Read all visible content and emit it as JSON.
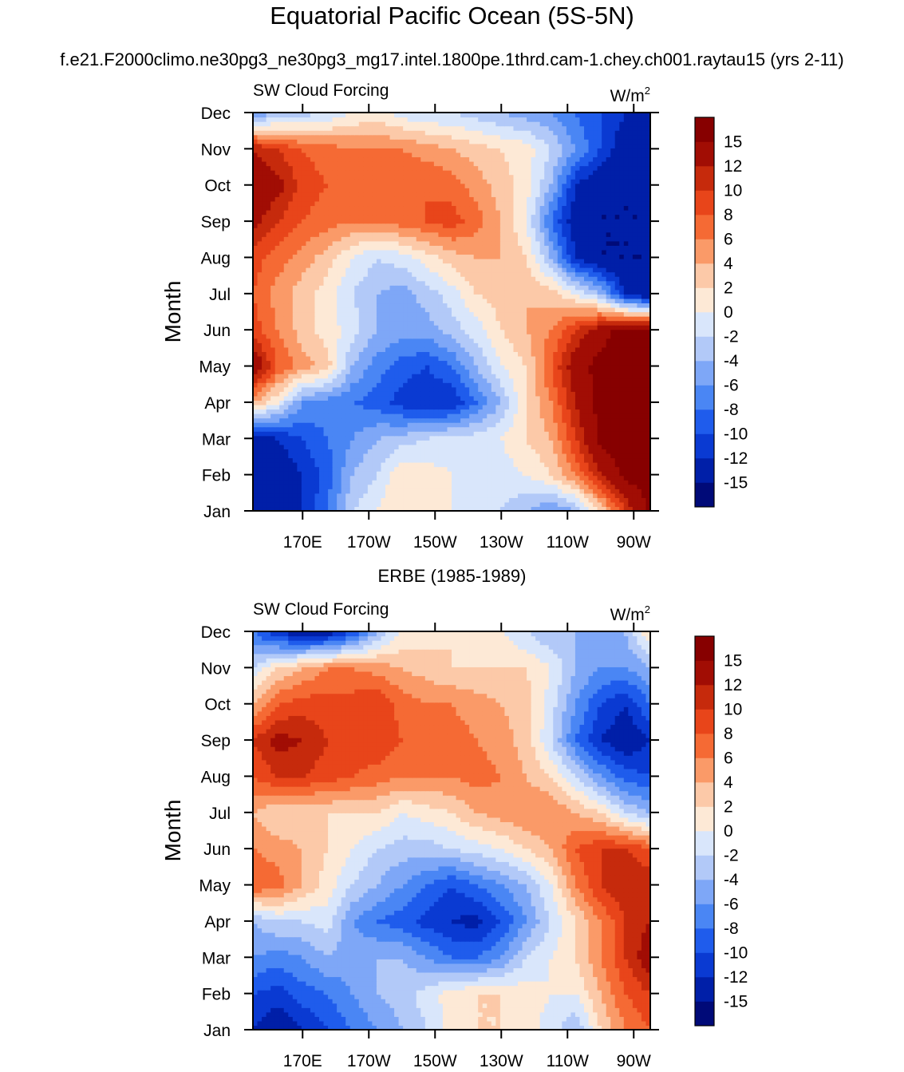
{
  "title": "Equatorial Pacific Ocean (5S-5N)",
  "subtitle": "f.e21.F2000climo.ne30pg3_ne30pg3_mg17.intel.1800pe.1thrd.cam-1.chey.ch001.raytau15 (yrs 2-11)",
  "colorbar": {
    "levels": [
      -15,
      -12,
      -10,
      -8,
      -6,
      -4,
      -2,
      0,
      2,
      4,
      6,
      8,
      10,
      12,
      15
    ],
    "label_texts": [
      "-15",
      "-12",
      "-10",
      "-8",
      "-6",
      "-4",
      "-2",
      "0",
      "2",
      "4",
      "6",
      "8",
      "10",
      "12",
      "15"
    ],
    "colors": [
      "#000a78",
      "#001fa8",
      "#0a3ad2",
      "#1f5cec",
      "#4a86f4",
      "#7ea7f7",
      "#b2c9f8",
      "#d9e6fb",
      "#fde9d6",
      "#fcc9a8",
      "#fa9a68",
      "#f56a34",
      "#e8451a",
      "#c62a0c",
      "#a10d04",
      "#870000"
    ]
  },
  "chart_data": [
    {
      "type": "heatmap",
      "title": "",
      "left_label": "SW Cloud Forcing",
      "units_base": "W/m",
      "units_exp": "2",
      "ylabel": "Month",
      "xlabel": "",
      "x_ticks": [
        "170E",
        "170W",
        "150W",
        "130W",
        "110W",
        "90W"
      ],
      "y_ticks": [
        "Jan",
        "Feb",
        "Mar",
        "Apr",
        "May",
        "Jun",
        "Jul",
        "Aug",
        "Sep",
        "Oct",
        "Nov",
        "Dec"
      ],
      "x": [
        155,
        162.5,
        170,
        177.5,
        185,
        192.5,
        200,
        207.5,
        215,
        222.5,
        230,
        237.5,
        245,
        252.5,
        260,
        267.5,
        275
      ],
      "y": [
        "Jan",
        "Feb",
        "Mar",
        "Apr",
        "May",
        "Jun",
        "Jul",
        "Aug",
        "Sep",
        "Oct",
        "Nov",
        "Dec"
      ],
      "z": [
        [
          -15,
          -14,
          -12,
          -8,
          -2,
          0,
          2,
          2,
          0,
          -2,
          -2,
          -4,
          -6,
          -4,
          2,
          10,
          16
        ],
        [
          -15,
          -14,
          -12,
          -9,
          -4,
          -2,
          2,
          1,
          0,
          -2,
          -1,
          0,
          2,
          6,
          12,
          16,
          16
        ],
        [
          -14,
          -12,
          -10,
          -8,
          -6,
          -4,
          -3,
          -2,
          -1,
          -1,
          0,
          2,
          4,
          10,
          16,
          16,
          16
        ],
        [
          4,
          0,
          -6,
          -7,
          -8,
          -9,
          -11,
          -12,
          -12,
          -8,
          -4,
          2,
          6,
          12,
          16,
          16,
          16
        ],
        [
          15,
          8,
          5,
          3,
          -4,
          -7,
          -9,
          -10,
          -8,
          -4,
          0,
          2,
          8,
          14,
          16,
          16,
          16
        ],
        [
          9,
          6,
          3,
          1,
          -1,
          -4,
          -5,
          -5,
          -3,
          -1,
          2,
          4,
          6,
          10,
          14,
          16,
          16
        ],
        [
          8,
          5,
          3,
          1,
          -2,
          -4,
          -5,
          -3,
          -1,
          2,
          3,
          4,
          3,
          0,
          -4,
          -12,
          -15
        ],
        [
          9,
          7,
          5,
          3,
          0,
          -2,
          -1,
          1,
          3,
          4,
          4,
          2,
          -4,
          -12,
          -15,
          -15,
          -15
        ],
        [
          13,
          10,
          8,
          7,
          6,
          6,
          7,
          8,
          9,
          7,
          4,
          0,
          -8,
          -14,
          -15,
          -15,
          -15
        ],
        [
          15,
          13,
          9,
          8,
          7,
          7,
          8,
          8,
          7,
          5,
          3,
          1,
          -4,
          -12,
          -15,
          -15,
          -15
        ],
        [
          12,
          10,
          8,
          7,
          6,
          6,
          6,
          5,
          4,
          3,
          2,
          1,
          -2,
          -6,
          -10,
          -14,
          -15
        ],
        [
          -6,
          -4,
          -3,
          -2,
          0,
          1,
          -1,
          -2,
          -2,
          -3,
          -4,
          -5,
          -6,
          -8,
          -10,
          -12,
          -15
        ]
      ]
    },
    {
      "type": "heatmap",
      "title": "ERBE (1985-1989)",
      "left_label": "SW Cloud Forcing",
      "units_base": "W/m",
      "units_exp": "2",
      "ylabel": "Month",
      "xlabel": "",
      "x_ticks": [
        "170E",
        "170W",
        "150W",
        "130W",
        "110W",
        "90W"
      ],
      "y_ticks": [
        "Jan",
        "Feb",
        "Mar",
        "Apr",
        "May",
        "Jun",
        "Jul",
        "Aug",
        "Sep",
        "Oct",
        "Nov",
        "Dec"
      ],
      "x": [
        155,
        162.5,
        170,
        177.5,
        185,
        192.5,
        200,
        207.5,
        215,
        222.5,
        230,
        237.5,
        245,
        252.5,
        260,
        267.5,
        275
      ],
      "y": [
        "Jan",
        "Feb",
        "Mar",
        "Apr",
        "May",
        "Jun",
        "Jul",
        "Aug",
        "Sep",
        "Oct",
        "Nov",
        "Dec"
      ],
      "z": [
        [
          -12,
          -14,
          -12,
          -10,
          -8,
          -6,
          -4,
          -2,
          1,
          2,
          2,
          1,
          -1,
          -4,
          2,
          6,
          8
        ],
        [
          -10,
          -11,
          -9,
          -8,
          -6,
          -4,
          -3,
          -1,
          1,
          2,
          2,
          1,
          0,
          0,
          4,
          8,
          10
        ],
        [
          -6,
          -7,
          -6,
          -4,
          -5,
          -4,
          -4,
          -6,
          -8,
          -8,
          -6,
          -2,
          0,
          2,
          6,
          10,
          14
        ],
        [
          -4,
          -2,
          -2,
          -1,
          -6,
          -8,
          -9,
          -11,
          -12,
          -13,
          -10,
          -6,
          -2,
          2,
          6,
          10,
          12
        ],
        [
          8,
          7,
          4,
          1,
          -2,
          -4,
          -6,
          -8,
          -10,
          -8,
          -6,
          -4,
          0,
          6,
          10,
          12,
          12
        ],
        [
          6,
          5,
          4,
          2,
          0,
          -2,
          -3,
          -3,
          -2,
          -1,
          0,
          2,
          4,
          8,
          10,
          10,
          8
        ],
        [
          4,
          2,
          2,
          2,
          2,
          2,
          0,
          1,
          2,
          4,
          5,
          6,
          6,
          4,
          2,
          -2,
          -4
        ],
        [
          8,
          10,
          10,
          9,
          8,
          7,
          6,
          6,
          6,
          7,
          6,
          4,
          2,
          -2,
          -6,
          -9,
          -10
        ],
        [
          10,
          13,
          12,
          10,
          9,
          10,
          8,
          7,
          7,
          6,
          5,
          3,
          -2,
          -8,
          -12,
          -14,
          -12
        ],
        [
          4,
          8,
          9,
          9,
          9,
          10,
          7,
          6,
          6,
          5,
          4,
          3,
          -1,
          -6,
          -10,
          -12,
          -8
        ],
        [
          -2,
          2,
          4,
          6,
          6,
          5,
          4,
          3,
          2,
          2,
          2,
          2,
          0,
          -4,
          -6,
          -6,
          -4
        ],
        [
          -8,
          -12,
          -14,
          -14,
          -10,
          -4,
          0,
          1,
          2,
          1,
          0,
          -2,
          -4,
          -4,
          -4,
          -4,
          2
        ]
      ]
    }
  ]
}
